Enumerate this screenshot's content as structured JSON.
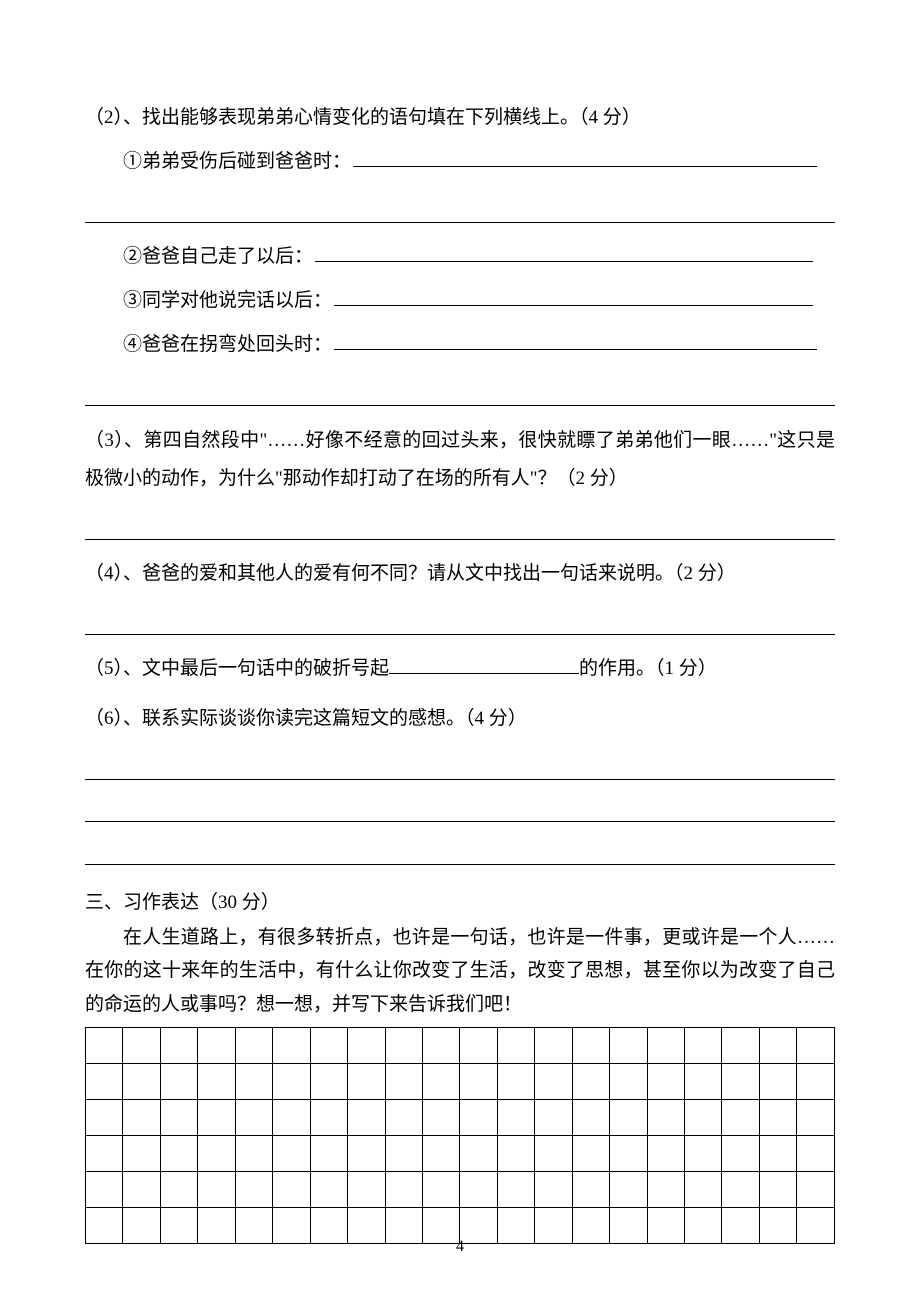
{
  "q2": {
    "header": "（2）、找出能够表现弟弟心情变化的语句填在下列横线上。（4 分）",
    "items": {
      "i1": "①弟弟受伤后碰到爸爸时：",
      "i2": "②爸爸自己走了以后：",
      "i3": "③同学对他说完话以后：",
      "i4": "④爸爸在拐弯处回头时："
    }
  },
  "q3": {
    "text": "（3）、第四自然段中\"……好像不经意的回过头来，很快就瞟了弟弟他们一眼……\"这只是极微小的动作，为什么\"那动作却打动了在场的所有人\"？（2 分）"
  },
  "q4": {
    "text": "（4）、爸爸的爱和其他人的爱有何不同？请从文中找出一句话来说明。（2 分）"
  },
  "q5": {
    "before": "（5）、文中最后一句话中的破折号起",
    "after": "的作用。（1 分）"
  },
  "q6": {
    "text": "（6）、联系实际谈谈你读完这篇短文的感想。（4 分）"
  },
  "section3": {
    "title": "三、习作表达（30 分）",
    "prompt": "在人生道路上，有很多转折点，也许是一句话，也许是一件事，更或许是一个人……在你的这十来年的生活中，有什么让你改变了生活，改变了思想，甚至你以为改变了自己的命运的人或事吗？想一想，并写下来告诉我们吧！"
  },
  "grid": {
    "rows": 6,
    "cols": 20
  },
  "pagenum": "4"
}
